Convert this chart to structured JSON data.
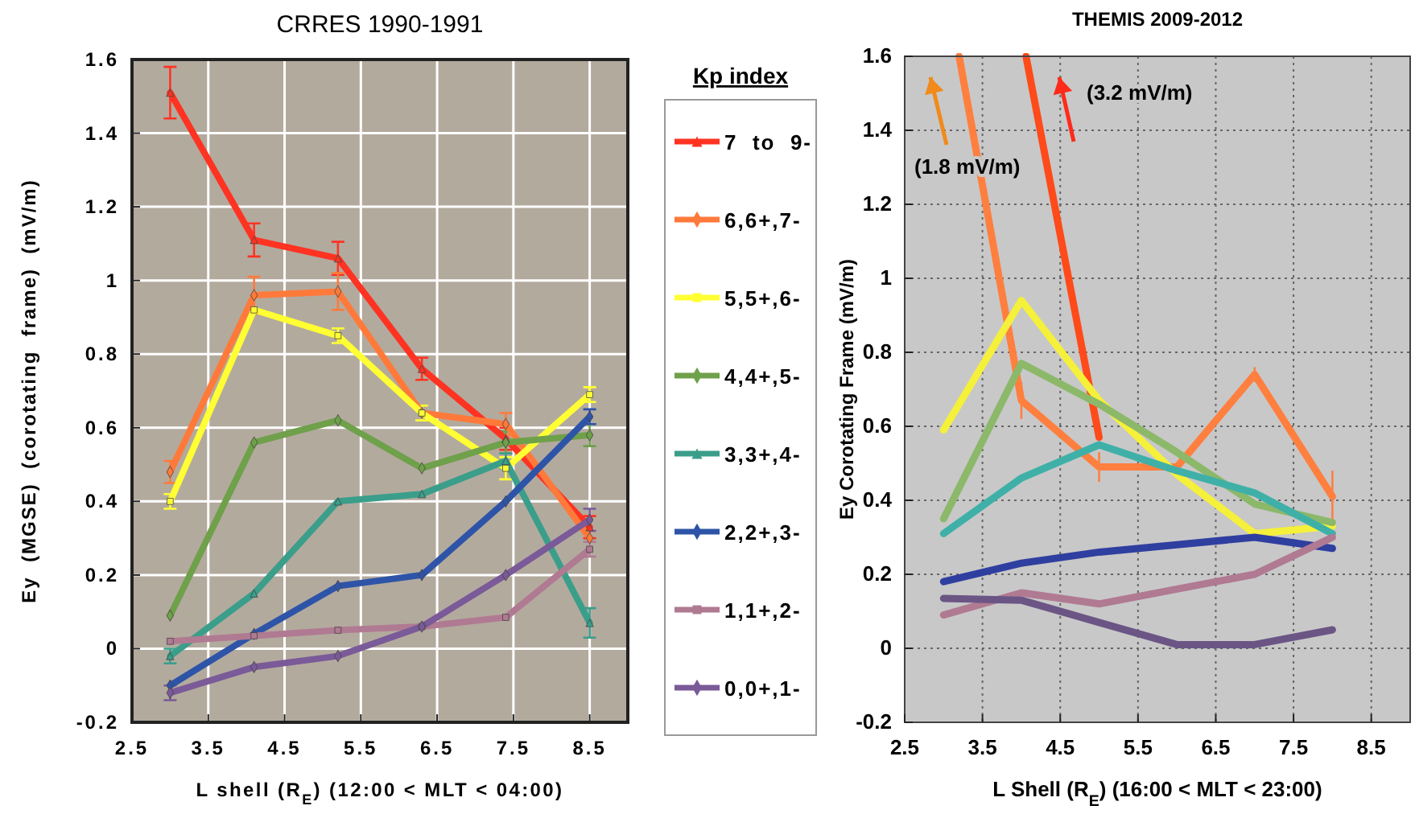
{
  "chart_data": [
    {
      "type": "line",
      "title": "CRRES 1990-1991",
      "xlabel": "L shell (R$_{E}$) (12:00 < MLT < 04:00)",
      "ylabel": "Ey  (MGSE)  (corotating  frame)  (mV/m)",
      "x": [
        3.0,
        4.1,
        5.2,
        6.3,
        7.4,
        8.5
      ],
      "xlim": [
        2.5,
        9.0
      ],
      "xticks": [
        2.5,
        3.5,
        4.5,
        5.5,
        6.5,
        7.5,
        8.5
      ],
      "ylim": [
        -0.2,
        1.6
      ],
      "yticks": [
        -0.2,
        0,
        0.2,
        0.4,
        0.6,
        0.8,
        1,
        1.2,
        1.4,
        1.6
      ],
      "grid": true,
      "legend": "right",
      "legend_title": "Kp index",
      "series": [
        {
          "name": "7  to  9-",
          "color": "#ff3322",
          "marker": "triangle",
          "values": [
            1.51,
            1.11,
            1.06,
            0.76,
            0.57,
            0.33
          ],
          "errors": [
            0.07,
            0.045,
            0.045,
            0.03,
            0.03,
            0.03
          ]
        },
        {
          "name": "6,6+,7-",
          "color": "#ff7a3a",
          "marker": "diamond",
          "values": [
            0.48,
            0.96,
            0.97,
            0.64,
            0.61,
            0.3
          ],
          "errors": [
            0.03,
            0.05,
            0.05,
            null,
            0.03,
            null
          ]
        },
        {
          "name": "5,5+,6-",
          "color": "#ffff33",
          "marker": "square",
          "values": [
            0.4,
            0.92,
            0.85,
            0.64,
            0.49,
            0.69
          ],
          "errors": [
            0.02,
            null,
            0.02,
            0.02,
            0.03,
            0.02
          ]
        },
        {
          "name": "4,4+,5-",
          "color": "#6fa04a",
          "marker": "diamond",
          "values": [
            0.09,
            0.56,
            0.62,
            0.49,
            0.56,
            0.58
          ],
          "errors": [
            null,
            null,
            null,
            null,
            0.03,
            0.03
          ]
        },
        {
          "name": "3,3+,4-",
          "color": "#3a9e8a",
          "marker": "triangle",
          "values": [
            -0.02,
            0.15,
            0.4,
            0.42,
            0.51,
            0.07
          ],
          "errors": [
            0.02,
            null,
            null,
            null,
            0.02,
            0.04
          ]
        },
        {
          "name": "2,2+,3-",
          "color": "#2e54a8",
          "marker": "diamond",
          "values": [
            -0.1,
            0.04,
            0.17,
            0.2,
            0.4,
            0.63
          ],
          "errors": [
            null,
            null,
            null,
            null,
            null,
            0.02
          ]
        },
        {
          "name": "1,1+,2-",
          "color": "#b07a92",
          "marker": "square",
          "values": [
            0.02,
            0.035,
            0.05,
            0.06,
            0.085,
            0.27
          ],
          "errors": [
            null,
            null,
            null,
            null,
            null,
            0.02
          ]
        },
        {
          "name": "0,0+,1-",
          "color": "#7a5a98",
          "marker": "diamond",
          "values": [
            -0.12,
            -0.05,
            -0.02,
            0.06,
            0.2,
            0.35
          ],
          "errors": [
            0.02,
            null,
            null,
            null,
            null,
            0.03
          ]
        }
      ]
    },
    {
      "type": "line",
      "title": "THEMIS 2009-2012",
      "xlabel": "L Shell (R$_{E}$) (16:00 < MLT < 23:00)",
      "ylabel": "Ey Corotating Frame (mV/m)",
      "x": [
        3,
        4,
        5,
        6,
        7,
        8
      ],
      "xlim": [
        2.5,
        9.0
      ],
      "xticks": [
        2.5,
        3.5,
        4.5,
        5.5,
        6.5,
        7.5,
        8.5
      ],
      "ylim": [
        -0.2,
        1.6
      ],
      "yticks": [
        -0.2,
        0,
        0.2,
        0.4,
        0.6,
        0.8,
        1,
        1.2,
        1.4,
        1.6
      ],
      "grid": true,
      "annotations": [
        "(1.8 mV/m)",
        "(3.2 mV/m)"
      ],
      "series": [
        {
          "color": "#ff4a1a",
          "x": [
            4.06,
            5
          ],
          "values": [
            1.6,
            0.57
          ]
        },
        {
          "color": "#ff7f3f",
          "x": [
            3.2,
            4,
            5,
            6,
            7,
            8
          ],
          "values": [
            1.6,
            0.67,
            0.49,
            0.49,
            0.74,
            0.41
          ],
          "errors": [
            null,
            0.05,
            0.04,
            null,
            0.02,
            0.07
          ]
        },
        {
          "color": "#f5f03a",
          "values": [
            0.59,
            0.94,
            0.67,
            0.47,
            0.31,
            0.33
          ]
        },
        {
          "color": "#8cb86a",
          "values": [
            0.35,
            0.77,
            0.66,
            0.53,
            0.39,
            0.34
          ]
        },
        {
          "color": "#3fb0a8",
          "values": [
            0.31,
            0.46,
            0.55,
            0.48,
            0.42,
            0.31
          ]
        },
        {
          "color": "#2f3fa0",
          "values": [
            0.18,
            0.23,
            0.26,
            0.28,
            0.3,
            0.27
          ]
        },
        {
          "color": "#b07a92",
          "values": [
            0.09,
            0.15,
            0.12,
            0.16,
            0.2,
            0.3
          ]
        },
        {
          "color": "#6b5585",
          "values": [
            0.135,
            0.13,
            0.07,
            0.01,
            0.01,
            0.05
          ]
        }
      ]
    }
  ]
}
